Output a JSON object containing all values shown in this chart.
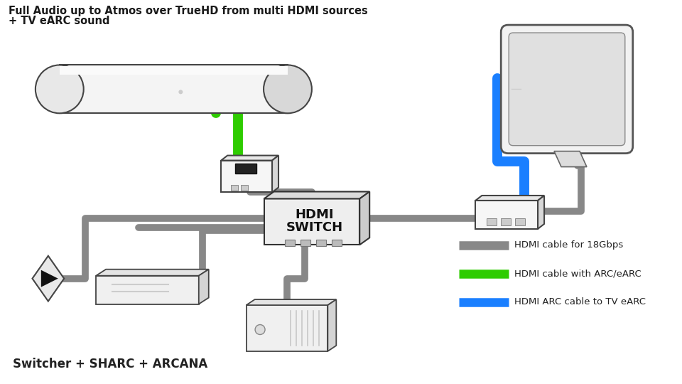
{
  "title_line1": "Full Audio up to Atmos over TrueHD from multi HDMI sources",
  "title_line2": "+ TV eARC sound",
  "footer": "Switcher + SHARC + ARCANA",
  "legend": [
    {
      "label": "HDMI cable for 18Gbps",
      "color": "#888888"
    },
    {
      "label": "HDMI cable with ARC/eARC",
      "color": "#2ecc00"
    },
    {
      "label": "HDMI ARC cable to TV eARC",
      "color": "#1a7fff"
    }
  ],
  "background_color": "#ffffff",
  "cable_gray": "#888888",
  "cable_green": "#2ecc00",
  "cable_blue": "#1a7fff",
  "cable_lw": 7,
  "cable_lw_color": 10
}
